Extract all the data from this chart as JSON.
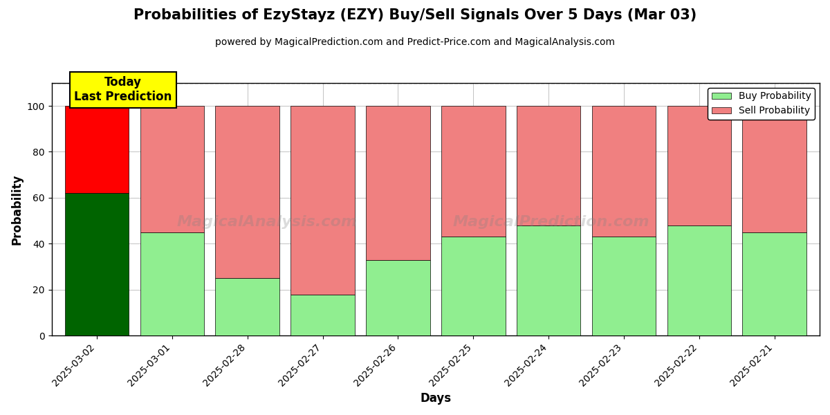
{
  "title": "Probabilities of EzyStayz (EZY) Buy/Sell Signals Over 5 Days (Mar 03)",
  "subtitle": "powered by MagicalPrediction.com and Predict-Price.com and MagicalAnalysis.com",
  "xlabel": "Days",
  "ylabel": "Probability",
  "watermark_left": "MagicalAnalysis.com",
  "watermark_right": "MagicalPrediction.com",
  "dates": [
    "2025-03-02",
    "2025-03-01",
    "2025-02-28",
    "2025-02-27",
    "2025-02-26",
    "2025-02-25",
    "2025-02-24",
    "2025-02-23",
    "2025-02-22",
    "2025-02-21"
  ],
  "buy_values": [
    62,
    45,
    25,
    18,
    33,
    43,
    48,
    43,
    48,
    45
  ],
  "sell_values": [
    38,
    55,
    75,
    82,
    67,
    57,
    52,
    57,
    52,
    55
  ],
  "today_buy_color": "#006400",
  "today_sell_color": "#FF0000",
  "buy_color": "#90EE90",
  "sell_color": "#F08080",
  "today_annotation_bg": "#FFFF00",
  "today_annotation_text": "Today\nLast Prediction",
  "ylim": [
    0,
    110
  ],
  "yticks": [
    0,
    20,
    40,
    60,
    80,
    100
  ],
  "dashed_line_y": 110,
  "legend_buy_label": "Buy Probability",
  "legend_sell_label": "Sell Probability",
  "bar_width": 0.85,
  "bg_color": "#ffffff",
  "grid_color": "#aaaaaa",
  "title_fontsize": 15,
  "subtitle_fontsize": 10,
  "axis_label_fontsize": 12,
  "tick_fontsize": 10
}
